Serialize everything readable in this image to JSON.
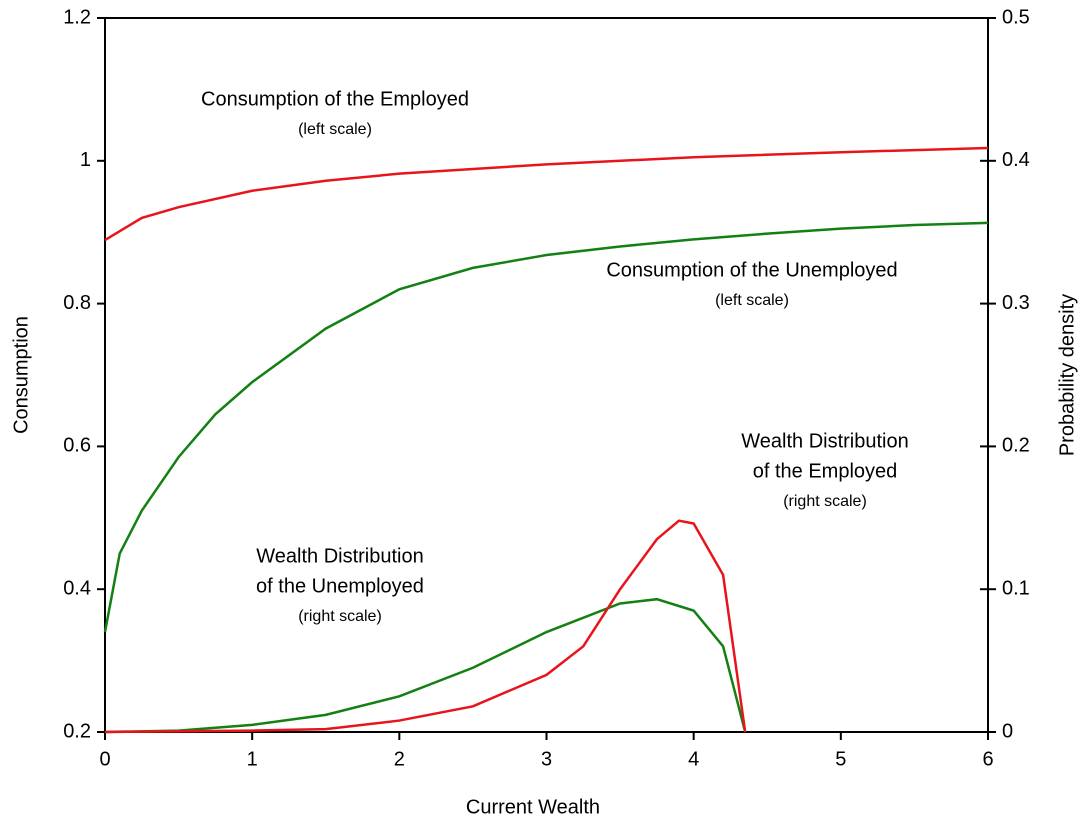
{
  "chart_data": {
    "type": "line",
    "xlabel": "Current Wealth",
    "ylabel": "Consumption",
    "y2label": "Probability density",
    "xlim": [
      0,
      6
    ],
    "xticks": [
      0,
      1,
      2,
      3,
      4,
      5,
      6
    ],
    "ylim": [
      0.2,
      1.2
    ],
    "yticks": [
      0.2,
      0.4,
      0.6,
      0.8,
      1,
      1.2
    ],
    "y2lim": [
      0,
      0.5
    ],
    "y2ticks": [
      0,
      0.1,
      0.2,
      0.3,
      0.4,
      0.5
    ],
    "grid": false,
    "series": [
      {
        "name": "Consumption of the Employed",
        "color": "#e8141c",
        "axis": "y",
        "x": [
          0,
          0.25,
          0.5,
          1,
          1.5,
          2,
          3,
          4,
          5,
          6
        ],
        "values": [
          0.889,
          0.92,
          0.935,
          0.958,
          0.972,
          0.982,
          0.995,
          1.005,
          1.012,
          1.018
        ]
      },
      {
        "name": "Consumption of the Unemployed",
        "color": "#138013",
        "axis": "y",
        "x": [
          0,
          0.1,
          0.25,
          0.5,
          0.75,
          1,
          1.5,
          2,
          2.5,
          3,
          3.5,
          4,
          4.5,
          5,
          5.5,
          6
        ],
        "values": [
          0.34,
          0.45,
          0.51,
          0.585,
          0.645,
          0.69,
          0.765,
          0.82,
          0.85,
          0.868,
          0.88,
          0.89,
          0.898,
          0.905,
          0.91,
          0.913
        ]
      },
      {
        "name": "Wealth Distribution of the Unemployed",
        "color": "#138013",
        "axis": "y2",
        "x": [
          0,
          0.5,
          1,
          1.5,
          2,
          2.5,
          3,
          3.5,
          3.75,
          4,
          4.2,
          4.35
        ],
        "values": [
          0,
          0.001,
          0.005,
          0.012,
          0.025,
          0.045,
          0.07,
          0.09,
          0.093,
          0.085,
          0.06,
          0
        ]
      },
      {
        "name": "Wealth Distribution of the Employed",
        "color": "#e8141c",
        "axis": "y2",
        "x": [
          0,
          1,
          1.5,
          2,
          2.5,
          3,
          3.25,
          3.5,
          3.75,
          3.9,
          4,
          4.2,
          4.35
        ],
        "values": [
          0,
          0.001,
          0.002,
          0.008,
          0.018,
          0.04,
          0.06,
          0.1,
          0.135,
          0.148,
          0.146,
          0.11,
          0
        ]
      }
    ],
    "annotations": [
      "Consumption of the Employed",
      "(left scale)",
      "Consumption of the Unemployed",
      "(left scale)",
      "Wealth Distribution",
      "of the Unemployed",
      "(right scale)",
      "Wealth Distribution",
      "of the Employed",
      "(right scale)"
    ]
  }
}
